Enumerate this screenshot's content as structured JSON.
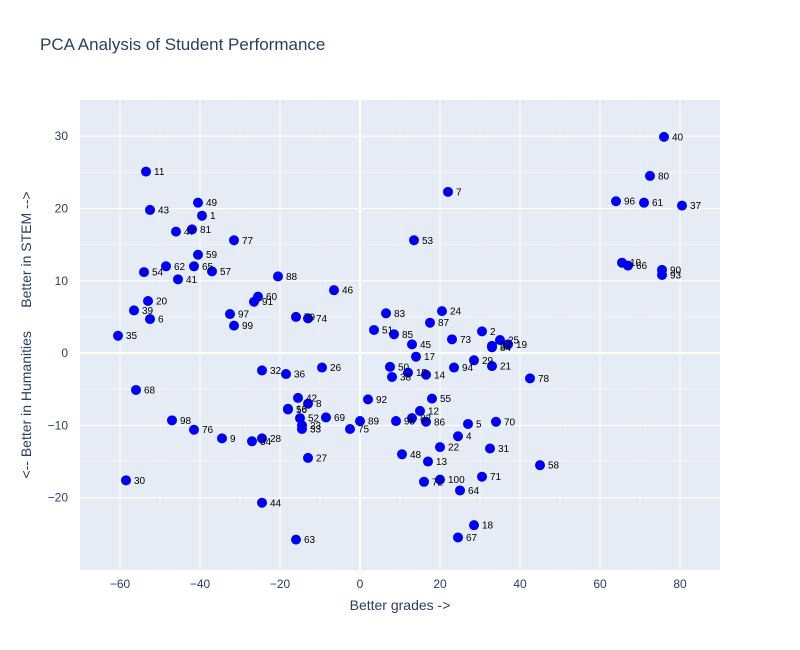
{
  "chart_data": {
    "type": "scatter",
    "title": "PCA Analysis of Student Performance",
    "xlabel": "Better grades ->",
    "ylabel": "<-- Better in Humanities      Better in STEM -->",
    "xlim": [
      -70,
      90
    ],
    "ylim": [
      -30,
      35
    ],
    "xticks": [
      -60,
      -40,
      -20,
      0,
      20,
      40,
      60,
      80
    ],
    "yticks": [
      -20,
      -10,
      0,
      10,
      20,
      30
    ],
    "grid": true,
    "marker_color": "#0000ee",
    "plot_bg": "#e5ecf6",
    "points": [
      {
        "label": "1",
        "x": -39.5,
        "y": 19.0
      },
      {
        "label": "2",
        "x": 30.5,
        "y": 3.0
      },
      {
        "label": "3",
        "x": 33.0,
        "y": 1.0
      },
      {
        "label": "4",
        "x": 24.5,
        "y": -11.5
      },
      {
        "label": "5",
        "x": 27.0,
        "y": -9.8
      },
      {
        "label": "6",
        "x": -52.5,
        "y": 4.7
      },
      {
        "label": "7",
        "x": 22.0,
        "y": 22.3
      },
      {
        "label": "8",
        "x": -13.0,
        "y": -7.0
      },
      {
        "label": "9",
        "x": -34.5,
        "y": -11.8
      },
      {
        "label": "10",
        "x": 65.5,
        "y": 12.5
      },
      {
        "label": "11",
        "x": -53.5,
        "y": 25.1
      },
      {
        "label": "12",
        "x": 15.0,
        "y": -8.0
      },
      {
        "label": "13",
        "x": 17.0,
        "y": -15.0
      },
      {
        "label": "14",
        "x": 16.5,
        "y": -3.0
      },
      {
        "label": "15",
        "x": 12.0,
        "y": -2.7
      },
      {
        "label": "16",
        "x": -18.0,
        "y": -7.7
      },
      {
        "label": "17",
        "x": 14.0,
        "y": -0.5
      },
      {
        "label": "18",
        "x": 28.5,
        "y": -23.8
      },
      {
        "label": "19",
        "x": 37.0,
        "y": 1.2
      },
      {
        "label": "20",
        "x": -53.0,
        "y": 7.2
      },
      {
        "label": "21",
        "x": 33.0,
        "y": -1.8
      },
      {
        "label": "22",
        "x": 20.0,
        "y": -13.0
      },
      {
        "label": "23",
        "x": -14.5,
        "y": -10.0
      },
      {
        "label": "24",
        "x": 20.5,
        "y": 5.8
      },
      {
        "label": "25",
        "x": 35.0,
        "y": 1.8
      },
      {
        "label": "26",
        "x": -9.5,
        "y": -2.0
      },
      {
        "label": "27",
        "x": -13.0,
        "y": -14.5
      },
      {
        "label": "28",
        "x": -24.5,
        "y": -11.8
      },
      {
        "label": "29",
        "x": 28.5,
        "y": -1.0
      },
      {
        "label": "30",
        "x": -58.5,
        "y": -17.6
      },
      {
        "label": "31",
        "x": 32.5,
        "y": -13.2
      },
      {
        "label": "32",
        "x": -24.5,
        "y": -2.4
      },
      {
        "label": "33",
        "x": -14.5,
        "y": -10.5
      },
      {
        "label": "34",
        "x": -27.0,
        "y": -12.2
      },
      {
        "label": "35",
        "x": -60.5,
        "y": 2.4
      },
      {
        "label": "36",
        "x": -18.5,
        "y": -2.9
      },
      {
        "label": "37",
        "x": 80.5,
        "y": 20.4
      },
      {
        "label": "38",
        "x": 8.0,
        "y": -3.3
      },
      {
        "label": "39",
        "x": -56.5,
        "y": 5.9
      },
      {
        "label": "40",
        "x": 76.0,
        "y": 29.9
      },
      {
        "label": "41",
        "x": -45.5,
        "y": 10.2
      },
      {
        "label": "42",
        "x": -15.5,
        "y": -6.2
      },
      {
        "label": "43",
        "x": -52.5,
        "y": 19.8
      },
      {
        "label": "44",
        "x": -24.5,
        "y": -20.7
      },
      {
        "label": "45",
        "x": 13.0,
        "y": 1.2
      },
      {
        "label": "46",
        "x": -6.5,
        "y": 8.7
      },
      {
        "label": "47",
        "x": -46.0,
        "y": 16.8
      },
      {
        "label": "48",
        "x": 10.5,
        "y": -14.0
      },
      {
        "label": "49",
        "x": -40.5,
        "y": 20.8
      },
      {
        "label": "50",
        "x": 7.5,
        "y": -1.9
      },
      {
        "label": "51",
        "x": 3.5,
        "y": 3.2
      },
      {
        "label": "52",
        "x": -15.0,
        "y": -9.0
      },
      {
        "label": "53",
        "x": 13.5,
        "y": 15.6
      },
      {
        "label": "54",
        "x": -54.0,
        "y": 11.2
      },
      {
        "label": "55",
        "x": 18.0,
        "y": -6.3
      },
      {
        "label": "56",
        "x": -18.0,
        "y": -7.8
      },
      {
        "label": "57",
        "x": -37.0,
        "y": 11.3
      },
      {
        "label": "58",
        "x": 45.0,
        "y": -15.5
      },
      {
        "label": "59",
        "x": -40.5,
        "y": 13.6
      },
      {
        "label": "60",
        "x": -25.5,
        "y": 7.8
      },
      {
        "label": "61",
        "x": 71.0,
        "y": 20.8
      },
      {
        "label": "62",
        "x": -48.5,
        "y": 12.0
      },
      {
        "label": "63",
        "x": -16.0,
        "y": -25.8
      },
      {
        "label": "64",
        "x": 25.0,
        "y": -19.0
      },
      {
        "label": "65",
        "x": -41.5,
        "y": 12.0
      },
      {
        "label": "66",
        "x": 67.0,
        "y": 12.1
      },
      {
        "label": "67",
        "x": 24.5,
        "y": -25.5
      },
      {
        "label": "68",
        "x": -56.0,
        "y": -5.1
      },
      {
        "label": "69",
        "x": -8.5,
        "y": -8.9
      },
      {
        "label": "70",
        "x": 34.0,
        "y": -9.5
      },
      {
        "label": "71",
        "x": 30.5,
        "y": -17.1
      },
      {
        "label": "72",
        "x": 16.0,
        "y": -17.8
      },
      {
        "label": "73",
        "x": 23.0,
        "y": 1.9
      },
      {
        "label": "74",
        "x": -13.0,
        "y": 4.8
      },
      {
        "label": "75",
        "x": -2.5,
        "y": -10.5
      },
      {
        "label": "76",
        "x": -41.5,
        "y": -10.6
      },
      {
        "label": "77",
        "x": -31.5,
        "y": 15.6
      },
      {
        "label": "78",
        "x": 42.5,
        "y": -3.5
      },
      {
        "label": "79",
        "x": -16.0,
        "y": 5.0
      },
      {
        "label": "80",
        "x": 72.5,
        "y": 24.5
      },
      {
        "label": "81",
        "x": -42.0,
        "y": 17.1
      },
      {
        "label": "82",
        "x": 13.0,
        "y": -9.0
      },
      {
        "label": "83",
        "x": 6.5,
        "y": 5.5
      },
      {
        "label": "84",
        "x": 33.0,
        "y": 0.8
      },
      {
        "label": "85",
        "x": 8.5,
        "y": 2.6
      },
      {
        "label": "86",
        "x": 16.5,
        "y": -9.5
      },
      {
        "label": "87",
        "x": 17.5,
        "y": 4.2
      },
      {
        "label": "88",
        "x": -20.5,
        "y": 10.6
      },
      {
        "label": "89",
        "x": 0.0,
        "y": -9.4
      },
      {
        "label": "90",
        "x": 75.5,
        "y": 11.5
      },
      {
        "label": "91",
        "x": -26.5,
        "y": 7.1
      },
      {
        "label": "92",
        "x": 2.0,
        "y": -6.4
      },
      {
        "label": "93",
        "x": 75.5,
        "y": 10.8
      },
      {
        "label": "94",
        "x": 23.5,
        "y": -2.0
      },
      {
        "label": "95",
        "x": 9.0,
        "y": -9.4
      },
      {
        "label": "96",
        "x": 64.0,
        "y": 21.0
      },
      {
        "label": "97",
        "x": -32.5,
        "y": 5.4
      },
      {
        "label": "98",
        "x": -47.0,
        "y": -9.3
      },
      {
        "label": "99",
        "x": -31.5,
        "y": 3.8
      },
      {
        "label": "100",
        "x": 20.0,
        "y": -17.5
      }
    ]
  }
}
